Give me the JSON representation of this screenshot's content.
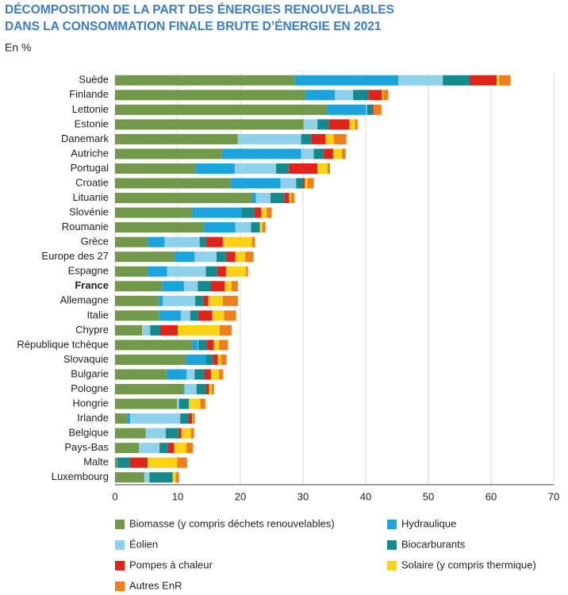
{
  "chart_data": {
    "type": "stacked_bar_horizontal",
    "title": [
      "DÉCOMPOSITION DE LA PART DES ÉNERGIES RENOUVELABLES",
      "DANS LA CONSOMMATION FINALE BRUTE D’ÉNERGIE EN 2021"
    ],
    "subtitle": "En %",
    "categories": [
      "Suède",
      "Finlande",
      "Lettonie",
      "Estonie",
      "Danemark",
      "Autriche",
      "Portugal",
      "Croatie",
      "Lituanie",
      "Slovénie",
      "Roumanie",
      "Grèce",
      "Europe des 27",
      "Espagne",
      "France",
      "Allemagne",
      "Italie",
      "Chypre",
      "République tchèque",
      "Slovaquie",
      "Bulgarie",
      "Pologne",
      "Hongrie",
      "Irlande",
      "Belgique",
      "Pays-Bas",
      "Malte",
      "Luxembourg"
    ],
    "highlight_index": 14,
    "series": [
      {
        "name": "Biomasse (y compris déchets renouvelables)",
        "color": "#72994a",
        "values": [
          28.7,
          30.3,
          33.8,
          30.1,
          19.6,
          17.0,
          12.8,
          18.4,
          21.9,
          12.2,
          14.1,
          5.2,
          9.5,
          5.1,
          7.5,
          7.0,
          7.0,
          4.3,
          12.3,
          11.3,
          8.2,
          11.0,
          9.9,
          1.8,
          4.9,
          3.8,
          0.4,
          4.6
        ]
      },
      {
        "name": "Hydraulique",
        "color": "#1ba3dd",
        "values": [
          16.5,
          4.8,
          6.2,
          0,
          0,
          12.7,
          6.3,
          8.0,
          0.6,
          8.0,
          5.1,
          2.7,
          3.2,
          3.2,
          3.5,
          0.6,
          3.5,
          0,
          0.9,
          3.2,
          3.2,
          0.1,
          0,
          0.6,
          0,
          0,
          0,
          0.1
        ]
      },
      {
        "name": "Éolien",
        "color": "#8fd0ea",
        "values": [
          7.1,
          2.9,
          0.2,
          2.2,
          10.1,
          2.0,
          6.6,
          2.5,
          2.3,
          0,
          2.5,
          5.6,
          3.5,
          6.2,
          2.2,
          5.2,
          1.5,
          1.3,
          0.1,
          0,
          1.3,
          1.9,
          0.3,
          8.0,
          3.2,
          3.3,
          0,
          0.8
        ]
      },
      {
        "name": "Biocarburants",
        "color": "#138a8c",
        "values": [
          4.2,
          2.4,
          0.8,
          1.8,
          1.6,
          1.6,
          2.0,
          1.1,
          2.2,
          2.0,
          1.4,
          1.0,
          1.5,
          1.8,
          2.0,
          1.3,
          1.3,
          1.5,
          1.3,
          1.1,
          1.5,
          1.5,
          1.6,
          1.3,
          2.0,
          1.3,
          1.9,
          3.7
        ]
      },
      {
        "name": "Pompes à chaleur",
        "color": "#e2231a",
        "values": [
          4.4,
          2.2,
          0.2,
          3.3,
          2.3,
          1.5,
          4.6,
          0.3,
          0.8,
          1.1,
          0,
          2.7,
          1.5,
          1.4,
          2.3,
          0.8,
          2.2,
          2.9,
          1.1,
          0.8,
          1.1,
          0.5,
          0,
          0.6,
          0.5,
          1.0,
          2.9,
          0
        ]
      },
      {
        "name": "Solaire (y compris thermique)",
        "color": "#fdd116",
        "values": [
          0.4,
          0.2,
          0,
          0.9,
          1.3,
          1.4,
          1.6,
          0.4,
          0.3,
          0.9,
          0.4,
          4.7,
          1.6,
          3.2,
          1.1,
          2.3,
          1.9,
          6.7,
          0.9,
          0.5,
          1.3,
          0.4,
          1.8,
          0.1,
          1.5,
          2.0,
          4.7,
          0.5
        ]
      },
      {
        "name": "Autres EnR",
        "color": "#f07e1c",
        "values": [
          1.8,
          0.8,
          1.3,
          0.4,
          2.0,
          0.6,
          0.4,
          1.0,
          0.5,
          0.8,
          0.5,
          0.4,
          1.3,
          0.3,
          1.0,
          2.4,
          1.9,
          1.9,
          1.4,
          0.9,
          0.6,
          0.4,
          0.8,
          0.3,
          0.5,
          1.0,
          1.6,
          0.5
        ]
      }
    ],
    "xlim": [
      0,
      70
    ],
    "xticks": [
      0,
      10,
      20,
      30,
      40,
      50,
      60,
      70
    ],
    "grid": true
  }
}
